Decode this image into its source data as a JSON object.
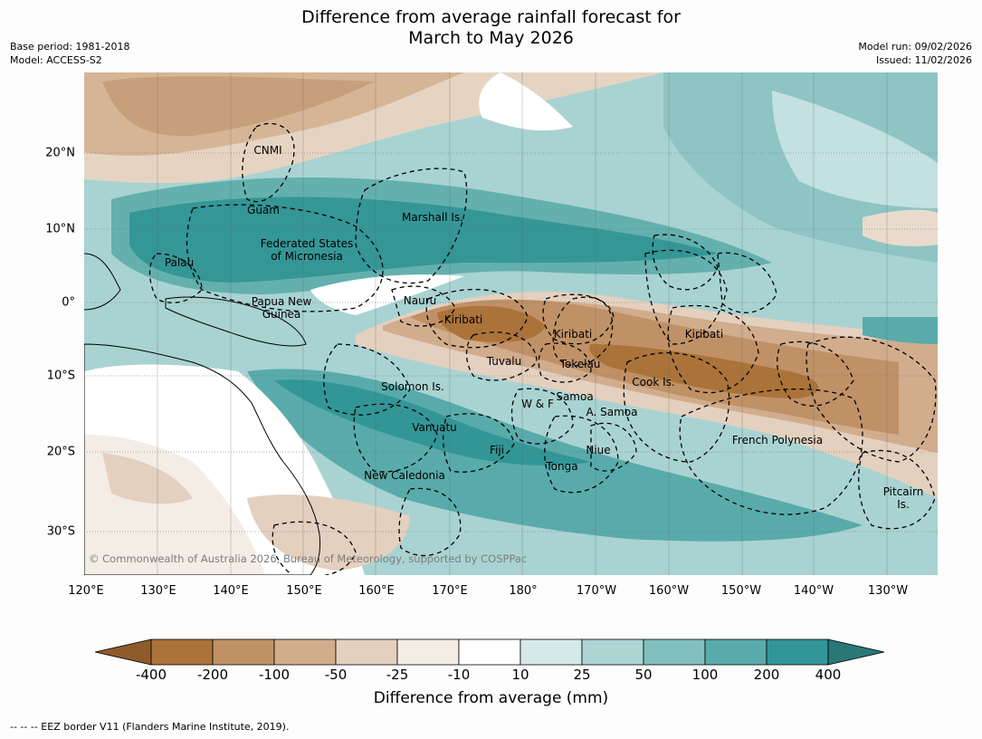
{
  "title": {
    "line1": "Difference from average rainfall forecast for",
    "line2": "March to May 2026"
  },
  "meta": {
    "base_period": "Base period: 1981-2018",
    "model": "Model: ACCESS-S2",
    "model_run": "Model run: 09/02/2026",
    "issued": "Issued: 11/02/2026"
  },
  "map": {
    "latitude_labels": [
      "20°N",
      "10°N",
      "0°",
      "10°S",
      "20°S",
      "30°S"
    ],
    "longitude_labels": [
      "120°E",
      "130°E",
      "140°E",
      "150°E",
      "160°E",
      "170°E",
      "180°",
      "170°W",
      "160°W",
      "150°W",
      "140°W",
      "130°W"
    ],
    "places": {
      "cnmi": "CNMI",
      "guam": "Guam",
      "marshall": "Marshall Is.",
      "fsm": "Federated States\nof Micronesia",
      "palau": "Palau",
      "png": "Papua New\nGuinea",
      "nauru": "Nauru",
      "kiribati_w": "Kiribati",
      "kiribati_c": "Kiribati",
      "kiribati_e": "Kiribati",
      "tuvalu": "Tuvalu",
      "tokelau": "Tokelau",
      "cook": "Cook Is.",
      "solomon": "Solomon Is.",
      "samoa": "Samoa",
      "wf": "W & F",
      "asamoa": "A. Samoa",
      "vanuatu": "Vanuatu",
      "fiji": "Fiji",
      "niue": "Niue",
      "tonga": "Tonga",
      "french_polynesia": "French Polynesia",
      "new_caledonia": "New Caledonia",
      "pitcairn": "Pitcairn\nIs."
    },
    "credit": "© Commonwealth of Australia 2026, Bureau of Meteorology, supported by COSPPac"
  },
  "colorbar": {
    "ticks": [
      "-400",
      "-200",
      "-100",
      "-50",
      "-25",
      "-10",
      "10",
      "25",
      "50",
      "100",
      "200",
      "400"
    ],
    "colors": [
      "#8f5a2a",
      "#ab733a",
      "#c09166",
      "#d1ad8d",
      "#e4d0bf",
      "#f3ede6",
      "#ffffff",
      "#d5eae8",
      "#acd5d4",
      "#82bfbf",
      "#59abab",
      "#339696",
      "#2a7777"
    ],
    "label": "Difference from average (mm)"
  },
  "footnote": "-- -- -- EEZ border V11 (Flanders Marine Institute, 2019)."
}
